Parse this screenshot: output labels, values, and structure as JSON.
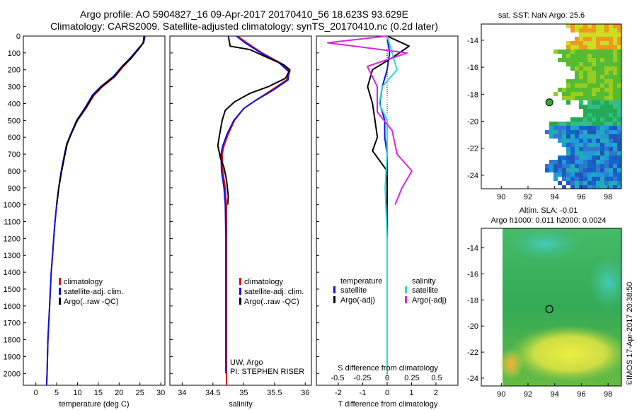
{
  "header": {
    "title_line1": "Argo profile: AO 5904827_16 09-Apr-2017 20170410_56 18.623S 93.629E",
    "title_line2": "Climatology: CARS2009. Satellite-adjusted climatology: synTS_20170410.nc (0.2d later)"
  },
  "colors": {
    "climatology": "#dd1111",
    "satellite": "#1111dd",
    "argo": "#000000",
    "sal_sat": "#22dddd",
    "sal_argo": "#dd22dd"
  },
  "chart_data": [
    {
      "type": "line",
      "id": "temperature",
      "xlabel": "temperature (deg C)",
      "xticks": [
        "0",
        "5",
        "10",
        "15",
        "20",
        "25",
        "30"
      ],
      "xlim": [
        -3,
        31
      ],
      "ylim": [
        2070,
        0
      ],
      "yticks": [
        "0",
        "100",
        "200",
        "300",
        "400",
        "500",
        "600",
        "700",
        "800",
        "900",
        "1000",
        "1100",
        "1200",
        "1300",
        "1400",
        "1500",
        "1600",
        "1700",
        "1800",
        "1900",
        "2000"
      ],
      "legend": [
        "climatology",
        "satellite-adj. clim.",
        "Argo(..raw -QC)"
      ],
      "series": [
        {
          "name": "climatology",
          "color": "#dd1111",
          "points": [
            [
              26,
              0
            ],
            [
              25.8,
              40
            ],
            [
              24.5,
              80
            ],
            [
              23,
              130
            ],
            [
              21,
              180
            ],
            [
              19,
              240
            ],
            [
              16,
              300
            ],
            [
              14,
              350
            ],
            [
              12,
              430
            ],
            [
              10,
              500
            ],
            [
              8.5,
              580
            ],
            [
              7.5,
              640
            ],
            [
              7,
              700
            ],
            [
              6.2,
              800
            ],
            [
              5.5,
              900
            ],
            [
              5,
              1000
            ],
            [
              4.6,
              1100
            ],
            [
              4.3,
              1200
            ],
            [
              4,
              1300
            ],
            [
              3.7,
              1400
            ],
            [
              3.5,
              1500
            ],
            [
              3.3,
              1600
            ],
            [
              3.1,
              1700
            ],
            [
              2.9,
              1800
            ],
            [
              2.8,
              1900
            ],
            [
              2.7,
              2000
            ],
            [
              2.6,
              2070
            ]
          ]
        },
        {
          "name": "satellite-adj. clim.",
          "color": "#1111dd",
          "points": [
            [
              26.2,
              0
            ],
            [
              25.9,
              40
            ],
            [
              24.4,
              80
            ],
            [
              22.7,
              130
            ],
            [
              20.7,
              180
            ],
            [
              18.6,
              240
            ],
            [
              15.6,
              300
            ],
            [
              13.6,
              350
            ],
            [
              11.7,
              430
            ],
            [
              9.8,
              500
            ],
            [
              8.4,
              580
            ],
            [
              7.4,
              640
            ],
            [
              6.9,
              700
            ],
            [
              6.1,
              800
            ],
            [
              5.5,
              900
            ],
            [
              5,
              1000
            ],
            [
              4.6,
              1100
            ],
            [
              4.3,
              1200
            ],
            [
              4,
              1300
            ],
            [
              3.7,
              1400
            ],
            [
              3.5,
              1500
            ],
            [
              3.3,
              1600
            ],
            [
              3.1,
              1700
            ],
            [
              2.9,
              1800
            ],
            [
              2.8,
              1900
            ],
            [
              2.7,
              2000
            ],
            [
              2.6,
              2070
            ]
          ]
        },
        {
          "name": "Argo(..raw -QC)",
          "color": "#000000",
          "points": [
            [
              26,
              0
            ],
            [
              25.8,
              40
            ],
            [
              24.6,
              80
            ],
            [
              22.9,
              130
            ],
            [
              20.8,
              180
            ],
            [
              18.8,
              240
            ],
            [
              15.8,
              300
            ],
            [
              13.8,
              350
            ],
            [
              11.9,
              430
            ],
            [
              9.9,
              500
            ],
            [
              8.5,
              580
            ],
            [
              7.5,
              640
            ],
            [
              7,
              700
            ],
            [
              6.2,
              800
            ],
            [
              5.5,
              900
            ],
            [
              5,
              1000
            ]
          ]
        }
      ]
    },
    {
      "type": "line",
      "id": "salinity",
      "xlabel": "salinity",
      "xticks": [
        "34",
        "34.5",
        "35",
        "35.5",
        "36"
      ],
      "xlim": [
        33.8,
        36.1
      ],
      "ylim": [
        2070,
        0
      ],
      "legend": [
        "climatology",
        "satellite-adj. clim.",
        "Argo(..raw -QC)"
      ],
      "annotation": [
        "UW, Argo",
        "PI: STEPHEN RISER"
      ],
      "series": [
        {
          "name": "climatology",
          "color": "#dd1111",
          "points": [
            [
              34.9,
              0
            ],
            [
              35.05,
              40
            ],
            [
              35.3,
              100
            ],
            [
              35.6,
              160
            ],
            [
              35.75,
              210
            ],
            [
              35.7,
              260
            ],
            [
              35.45,
              320
            ],
            [
              35.2,
              380
            ],
            [
              35,
              430
            ],
            [
              34.85,
              500
            ],
            [
              34.75,
              580
            ],
            [
              34.68,
              650
            ],
            [
              34.65,
              700
            ],
            [
              34.66,
              800
            ],
            [
              34.7,
              900
            ],
            [
              34.72,
              1000
            ],
            [
              34.72,
              1200
            ],
            [
              34.72,
              1500
            ],
            [
              34.72,
              1800
            ],
            [
              34.72,
              2070
            ]
          ]
        },
        {
          "name": "satellite-adj. clim.",
          "color": "#1111dd",
          "points": [
            [
              34.88,
              0
            ],
            [
              35.02,
              40
            ],
            [
              35.28,
              100
            ],
            [
              35.58,
              160
            ],
            [
              35.73,
              210
            ],
            [
              35.72,
              260
            ],
            [
              35.48,
              320
            ],
            [
              35.2,
              380
            ],
            [
              35,
              430
            ],
            [
              34.84,
              500
            ],
            [
              34.73,
              580
            ],
            [
              34.66,
              650
            ],
            [
              34.63,
              700
            ],
            [
              34.64,
              800
            ],
            [
              34.68,
              900
            ],
            [
              34.7,
              1000
            ],
            [
              34.71,
              1200
            ],
            [
              34.71,
              1500
            ],
            [
              34.71,
              1800
            ],
            [
              34.71,
              2000
            ]
          ]
        },
        {
          "name": "Argo(..raw -QC)",
          "color": "#000000",
          "points": [
            [
              34.75,
              0
            ],
            [
              34.78,
              60
            ],
            [
              35.1,
              80
            ],
            [
              35.4,
              130
            ],
            [
              35.65,
              170
            ],
            [
              35.75,
              200
            ],
            [
              35.68,
              250
            ],
            [
              35.4,
              300
            ],
            [
              35.1,
              340
            ],
            [
              34.85,
              390
            ],
            [
              34.7,
              440
            ],
            [
              34.65,
              500
            ],
            [
              34.6,
              600
            ],
            [
              34.58,
              650
            ],
            [
              34.62,
              720
            ],
            [
              34.68,
              780
            ],
            [
              34.72,
              850
            ],
            [
              34.75,
              950
            ],
            [
              34.74,
              1000
            ]
          ]
        }
      ]
    },
    {
      "type": "line",
      "id": "difference",
      "xlabel": "T difference from climatology",
      "xticks": [
        "-2",
        "-1",
        "0",
        "1",
        "2"
      ],
      "xlim": [
        -2.9,
        2.9
      ],
      "sxlabel": "S difference from climatology",
      "sxticks": [
        "-0.5",
        "-0.25",
        "0",
        "0.25",
        "0.5"
      ],
      "ylim": [
        2070,
        0
      ],
      "legend_temperature": [
        "temperature",
        "satellite",
        "Argo(-adj)"
      ],
      "legend_salinity": [
        "salinity",
        "satellite",
        "Argo(-adj)"
      ],
      "series": [
        {
          "name": "T satellite",
          "color": "#1111dd",
          "points": [
            [
              0,
              0
            ],
            [
              0.1,
              100
            ],
            [
              0,
              200
            ],
            [
              -0.2,
              300
            ],
            [
              -0.3,
              400
            ],
            [
              -0.1,
              500
            ],
            [
              -0.1,
              600
            ],
            [
              0,
              700
            ],
            [
              0,
              1000
            ],
            [
              0,
              1500
            ],
            [
              0,
              2000
            ]
          ]
        },
        {
          "name": "T Argo(-adj)",
          "color": "#000000",
          "points": [
            [
              0,
              0
            ],
            [
              0.9,
              60
            ],
            [
              0.3,
              120
            ],
            [
              -0.6,
              200
            ],
            [
              -0.8,
              300
            ],
            [
              -0.6,
              400
            ],
            [
              -0.5,
              500
            ],
            [
              -0.4,
              600
            ],
            [
              -0.6,
              680
            ],
            [
              -0.4,
              720
            ],
            [
              0,
              800
            ],
            [
              0,
              1000
            ]
          ]
        },
        {
          "name": "S satellite",
          "color": "#22dddd",
          "points": [
            [
              0,
              0
            ],
            [
              0.05,
              100
            ],
            [
              0.1,
              200
            ],
            [
              -0.05,
              300
            ],
            [
              -0.08,
              400
            ],
            [
              0,
              500
            ],
            [
              0,
              700
            ],
            [
              -0.02,
              900
            ],
            [
              0,
              1200
            ],
            [
              0,
              1500
            ],
            [
              0,
              2000
            ]
          ]
        },
        {
          "name": "S Argo(-adj)",
          "color": "#dd22dd",
          "points": [
            [
              0,
              0
            ],
            [
              -0.6,
              40
            ],
            [
              0.2,
              100
            ],
            [
              -0.2,
              180
            ],
            [
              -0.1,
              300
            ],
            [
              -0.1,
              450
            ],
            [
              0.05,
              560
            ],
            [
              0.1,
              700
            ],
            [
              0.25,
              800
            ],
            [
              0.15,
              900
            ],
            [
              0.08,
              1000
            ]
          ]
        }
      ]
    },
    {
      "type": "heatmap",
      "id": "sst-map",
      "title": "sat. SST: NaN Argo: 25.6",
      "xticks": [
        "90",
        "92",
        "94",
        "96",
        "98"
      ],
      "yticks": [
        "-14",
        "-16",
        "-18",
        "-20",
        "-22",
        "-24"
      ],
      "xlim": [
        88.5,
        99
      ],
      "ylim": [
        -12.8,
        -25
      ],
      "argo_point": [
        93.6,
        -18.6
      ]
    },
    {
      "type": "heatmap",
      "id": "sla-map",
      "title_line1": "Altim. SLA: -0.01",
      "title_line2": "Argo h1000: 0.011 h2000: 0.0024",
      "xticks": [
        "90",
        "92",
        "94",
        "96",
        "98"
      ],
      "yticks": [
        "-14",
        "-16",
        "-18",
        "-20",
        "-22",
        "-24"
      ],
      "xlim": [
        88.5,
        99
      ],
      "ylim": [
        -12.5,
        -24.6
      ],
      "argo_point": [
        93.6,
        -18.7
      ]
    }
  ],
  "credit": "©IMOS 17-Apr-2017 20:38:50"
}
